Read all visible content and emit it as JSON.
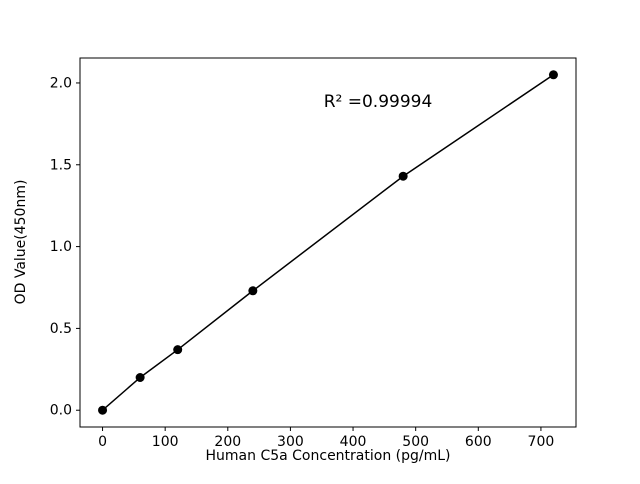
{
  "chart_data": {
    "type": "line",
    "title": "",
    "xlabel": "Human C5a Concentration (pg/mL)",
    "ylabel": "OD Value(450nm)",
    "x": [
      0,
      60,
      120,
      240,
      480,
      720
    ],
    "y": [
      0.0,
      0.2,
      0.37,
      0.73,
      1.43,
      2.05
    ],
    "xlim": [
      -36,
      756
    ],
    "ylim": [
      -0.1025,
      2.1525
    ],
    "xticks": {
      "values": [
        0,
        100,
        200,
        300,
        400,
        500,
        600,
        700
      ],
      "labels": [
        "0",
        "100",
        "200",
        "300",
        "400",
        "500",
        "600",
        "700"
      ]
    },
    "yticks": {
      "values": [
        0.0,
        0.5,
        1.0,
        1.5,
        2.0
      ],
      "labels": [
        "0.0",
        "0.5",
        "1.0",
        "1.5",
        "2.0"
      ]
    },
    "annotation": {
      "text": "R² =0.99994"
    },
    "line_color": "#000000",
    "marker_color": "#000000",
    "background": "#ffffff",
    "grid": false,
    "legend": "none"
  }
}
